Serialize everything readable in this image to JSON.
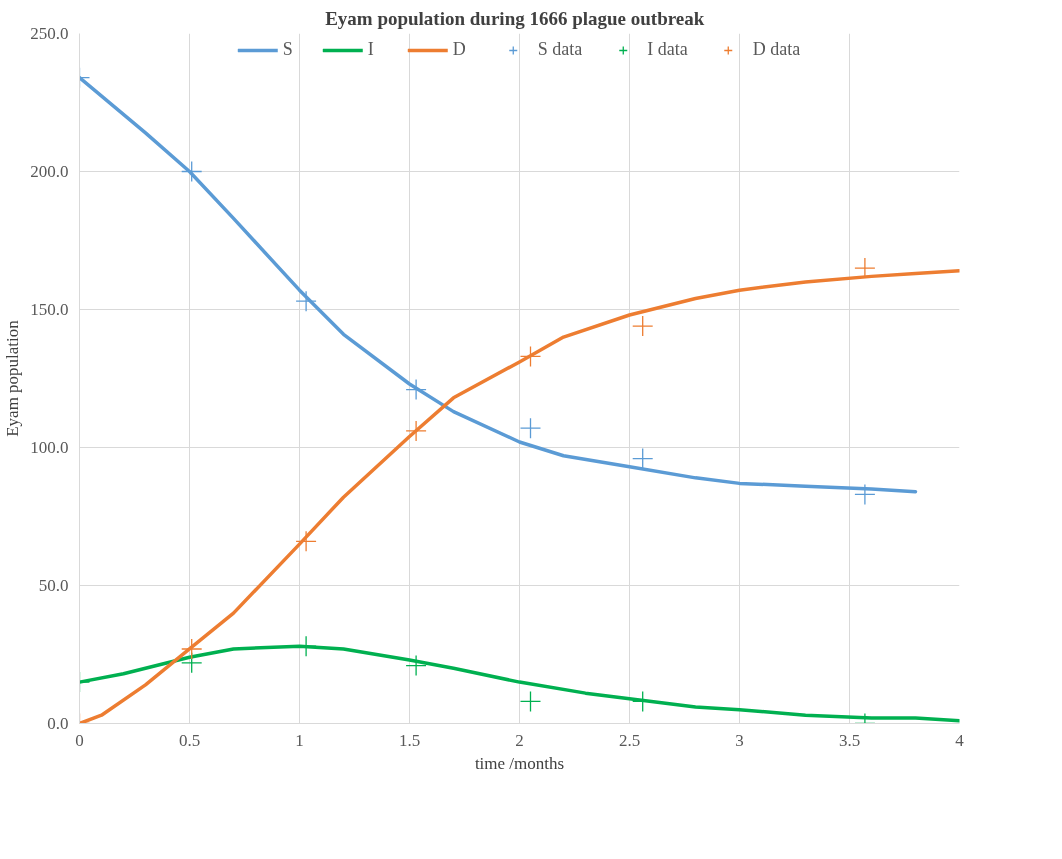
{
  "chart_data": {
    "type": "line",
    "title": "Eyam population  during 1666 plague  outbreak",
    "xlabel": "time /months",
    "ylabel": "Eyam population",
    "xlim": [
      0,
      4
    ],
    "xticks": [
      0,
      0.5,
      1,
      1.5,
      2,
      2.5,
      3,
      3.5,
      4
    ],
    "ylim": [
      0,
      250
    ],
    "yticks": [
      {
        "value": 0,
        "label": "0.0"
      },
      {
        "value": 50,
        "label": "50.0"
      },
      {
        "value": 100,
        "label": "100.0"
      },
      {
        "value": 150,
        "label": "150.0"
      },
      {
        "value": 200,
        "label": "200.0"
      },
      {
        "value": 250,
        "label": "250.0"
      }
    ],
    "grid": true,
    "legend": "top",
    "marker": "cross",
    "series": [
      {
        "name": "S",
        "marker": "none",
        "color": "#5b9bd5",
        "x": [
          0,
          0.3,
          0.5,
          0.7,
          1.0,
          1.2,
          1.5,
          1.7,
          2.0,
          2.2,
          2.5,
          2.8,
          3.0,
          3.3,
          3.6,
          3.8
        ],
        "values": [
          234,
          214,
          200,
          183,
          157,
          141,
          123,
          113,
          102,
          97,
          93,
          89,
          87,
          86,
          85,
          84
        ]
      },
      {
        "name": "I",
        "marker": "none",
        "color": "#00b050",
        "x": [
          0,
          0.2,
          0.4,
          0.5,
          0.7,
          1.0,
          1.2,
          1.5,
          1.7,
          2.0,
          2.3,
          2.5,
          2.8,
          3.0,
          3.3,
          3.6,
          3.8,
          4.0
        ],
        "values": [
          15,
          18,
          22,
          24,
          27,
          28,
          27,
          23,
          20,
          15,
          11,
          9,
          6,
          5,
          3,
          2,
          2,
          1
        ]
      },
      {
        "name": "D",
        "marker": "none",
        "color": "#ed7d31",
        "x": [
          0,
          0.1,
          0.3,
          0.5,
          0.7,
          1.0,
          1.2,
          1.5,
          1.7,
          2.0,
          2.2,
          2.5,
          2.8,
          3.0,
          3.3,
          3.6,
          3.8,
          4.0
        ],
        "values": [
          0,
          3,
          14,
          27,
          40,
          65,
          82,
          104,
          118,
          131,
          140,
          148,
          154,
          157,
          160,
          162,
          163,
          164
        ]
      },
      {
        "name": "S data",
        "type": "scatter",
        "color": "#5b9bd5",
        "x": [
          0,
          0.51,
          1.03,
          1.53,
          2.05,
          2.56,
          3.57
        ],
        "values": [
          234,
          200,
          153,
          121,
          107,
          96,
          83
        ]
      },
      {
        "name": "I data",
        "type": "scatter",
        "color": "#00b050",
        "x": [
          0,
          0.51,
          1.03,
          1.53,
          2.05,
          2.56,
          3.57
        ],
        "values": [
          15,
          22,
          28,
          21,
          8,
          8,
          0
        ]
      },
      {
        "name": "D data",
        "type": "scatter",
        "color": "#ed7d31",
        "x": [
          0,
          0.51,
          1.03,
          1.53,
          2.05,
          2.56,
          3.57
        ],
        "values": [
          0,
          27,
          66,
          106,
          133,
          144,
          165
        ]
      }
    ]
  }
}
